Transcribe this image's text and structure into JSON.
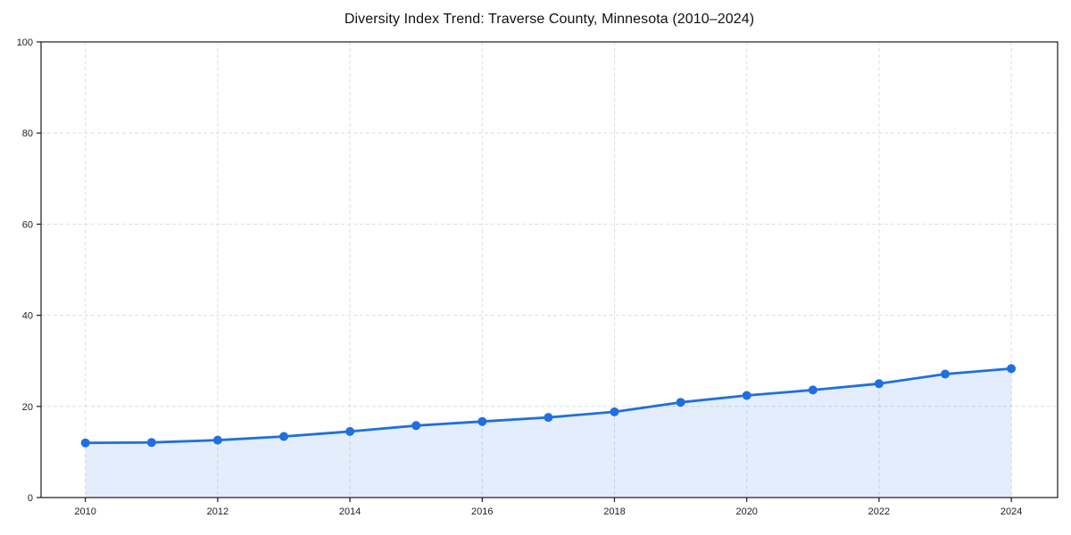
{
  "chart_data": {
    "type": "area",
    "title": "Diversity Index Trend: Traverse County, Minnesota (2010–2024)",
    "series_name": "Diversity Index",
    "x": [
      2010,
      2011,
      2012,
      2013,
      2014,
      2015,
      2016,
      2017,
      2018,
      2019,
      2020,
      2021,
      2022,
      2023,
      2024
    ],
    "values": [
      12.0,
      12.1,
      12.6,
      13.4,
      14.5,
      15.8,
      16.7,
      17.6,
      18.8,
      20.9,
      22.4,
      23.6,
      25.0,
      27.1,
      28.3
    ],
    "xlabel": "",
    "ylabel": "",
    "xticks": [
      2010,
      2012,
      2014,
      2016,
      2018,
      2020,
      2022,
      2024
    ],
    "yticks": [
      0,
      20,
      40,
      60,
      80,
      100
    ],
    "xlim": [
      2009.33,
      2024.7
    ],
    "ylim": [
      0,
      100
    ],
    "grid": true,
    "grid_style": "dashed",
    "legend": false,
    "marker": "circle",
    "marker_radius": 5,
    "line_width": 2.8,
    "colors": {
      "line": "#1f6fe0",
      "marker": "#1f6fe0",
      "fill": "rgba(31,111,224,0.12)",
      "grid": "#dedede",
      "axis": "#1a1a1a",
      "tick_label": "#222222",
      "title": "#111111",
      "background": "#ffffff"
    }
  }
}
